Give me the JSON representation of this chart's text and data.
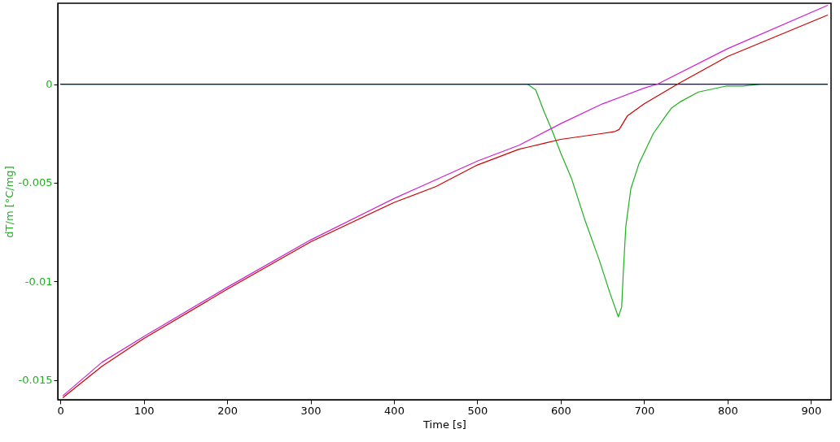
{
  "chart_data": {
    "type": "line",
    "xlabel": "Time [s]",
    "ylabel": "dT/m  [°C/mg]",
    "xlim": [
      -3,
      924
    ],
    "ylim": [
      -0.016,
      0.0041
    ],
    "xticks": [
      0,
      100,
      200,
      300,
      400,
      500,
      600,
      700,
      800,
      900
    ],
    "yticks": [
      -0.015,
      -0.01,
      -0.005,
      0
    ],
    "grid": false,
    "legend": false,
    "line_style": "solid",
    "series": [
      {
        "color": "#20b020",
        "x": [
          0,
          560,
          570,
          580,
          590,
          600,
          613,
          629,
          646,
          659,
          669,
          673,
          675,
          678,
          684,
          694,
          711,
          726,
          733,
          743,
          765,
          798,
          818,
          840,
          920
        ],
        "values": [
          0,
          0,
          -0.0003,
          -0.0014,
          -0.0024,
          -0.0035,
          -0.0048,
          -0.0069,
          -0.0089,
          -0.0106,
          -0.0118,
          -0.0113,
          -0.0095,
          -0.0072,
          -0.0053,
          -0.004,
          -0.0025,
          -0.0016,
          -0.0012,
          -0.0009,
          -0.0004,
          -0.0001,
          -0.0001,
          0,
          0
        ]
      },
      {
        "color": "#0000c0",
        "x": [
          0,
          920
        ],
        "values": [
          0,
          0
        ]
      },
      {
        "color": "#d020d0",
        "x": [
          3,
          50,
          100,
          200,
          300,
          400,
          500,
          550,
          600,
          650,
          700,
          716,
          800,
          920
        ],
        "values": [
          -0.0158,
          -0.0141,
          -0.0128,
          -0.0103,
          -0.0079,
          -0.0058,
          -0.0039,
          -0.0031,
          -0.002,
          -0.001,
          -0.0002,
          0,
          0.0018,
          0.004
        ]
      },
      {
        "color": "#cc0000",
        "x": [
          3,
          50,
          100,
          200,
          300,
          400,
          450,
          500,
          550,
          560,
          580,
          600,
          650,
          665,
          670,
          680,
          700,
          740,
          800,
          920
        ],
        "values": [
          -0.0159,
          -0.0143,
          -0.0129,
          -0.0104,
          -0.008,
          -0.006,
          -0.0052,
          -0.0041,
          -0.0033,
          -0.0032,
          -0.003,
          -0.0028,
          -0.0025,
          -0.0024,
          -0.0023,
          -0.0016,
          -0.001,
          0,
          0.0014,
          0.0035
        ]
      }
    ]
  }
}
